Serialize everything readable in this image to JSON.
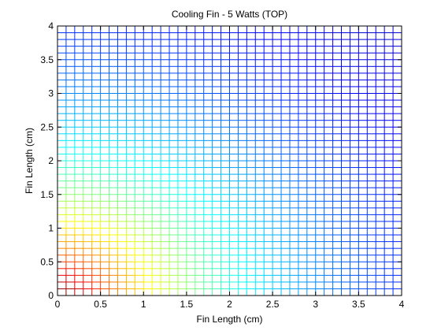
{
  "chart_data": {
    "type": "heatmap",
    "title": "Cooling Fin - 5 Watts (TOP)",
    "xlabel": "Fin Length (cm)",
    "ylabel": "Fin Length (cm)",
    "xlim": [
      0,
      4
    ],
    "ylim": [
      0,
      4
    ],
    "x_ticks": [
      "0",
      "0.5",
      "1",
      "1.5",
      "2",
      "2.5",
      "3",
      "3.5",
      "4"
    ],
    "y_ticks": [
      "0",
      "0.5",
      "1",
      "1.5",
      "2",
      "2.5",
      "3",
      "3.5",
      "4"
    ],
    "mesh": {
      "divisions_x": 40,
      "divisions_y": 40
    },
    "field": {
      "description_source": "mesh line color encodes temperature",
      "hot_corner": [
        0,
        0
      ],
      "cold_corner": [
        4,
        4
      ],
      "colormap": "jet"
    },
    "grid": false,
    "legend": "none"
  }
}
